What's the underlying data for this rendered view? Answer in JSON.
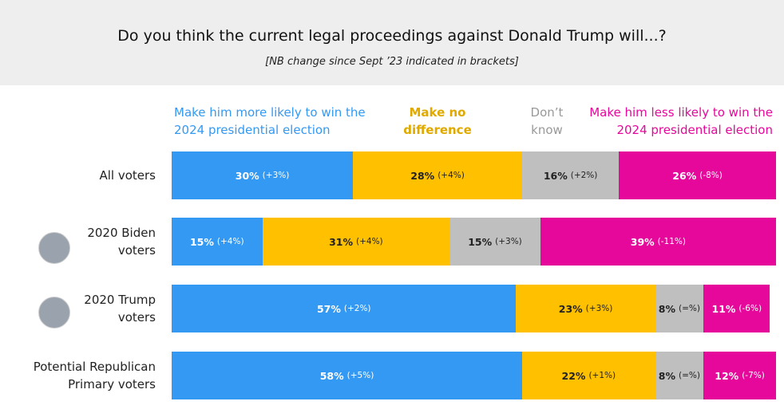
{
  "chart_data": {
    "type": "bar",
    "orientation": "horizontal",
    "stacked": true,
    "title": "Do you think the current legal proceedings against Donald Trump will...?",
    "subtitle": "[NB change since Sept ’23 indicated in brackets]",
    "categories": [
      "All voters",
      "2020 Biden voters",
      "2020 Trump voters",
      "Potential Republican Primary voters"
    ],
    "xlim": [
      0,
      100
    ],
    "series": [
      {
        "name": "Make him more likely to win the 2024 presidential election",
        "color": "#3399f3",
        "values": [
          30,
          15,
          57,
          58
        ],
        "value_labels": [
          "30%",
          "15%",
          "57%",
          "58%"
        ],
        "changes": [
          "(+3%)",
          "(+4%)",
          "(+2%)",
          "(+5%)"
        ]
      },
      {
        "name": "Make no difference",
        "color": "#ffc000",
        "values": [
          28,
          31,
          23,
          22
        ],
        "value_labels": [
          "28%",
          "31%",
          "23%",
          "22%"
        ],
        "changes": [
          "(+4%)",
          "(+4%)",
          "(+3%)",
          "(+1%)"
        ]
      },
      {
        "name": "Don’t know",
        "color": "#bfbfbf",
        "values": [
          16,
          15,
          8,
          8
        ],
        "value_labels": [
          "16%",
          "15%",
          "8%",
          "8%"
        ],
        "changes": [
          "(+2%)",
          "(+3%)",
          "(=%)",
          "(=%)"
        ]
      },
      {
        "name": "Make him less likely to win the 2024 presidential election",
        "color": "#e6079b",
        "values": [
          26,
          39,
          11,
          12
        ],
        "value_labels": [
          "26%",
          "39%",
          "11%",
          "12%"
        ],
        "changes": [
          "(-8%)",
          "(-11%)",
          "(-6%)",
          "(-7%)"
        ]
      }
    ]
  }
}
